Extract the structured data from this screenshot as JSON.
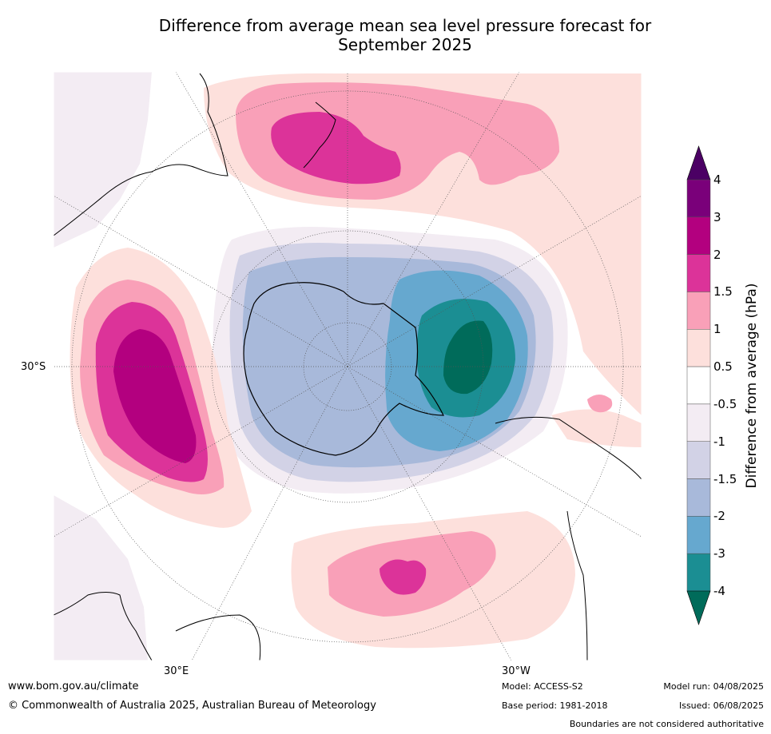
{
  "title_line1": "Difference from average mean sea level pressure forecast for",
  "title_line2": "September 2025",
  "axis_labels": {
    "lat": "30°S",
    "lon_east": "30°E",
    "lon_west": "30°W"
  },
  "colorbar": {
    "title": "Difference from average (hPa)",
    "tick_labels": [
      "4",
      "3",
      "2",
      "1.5",
      "1",
      "0.5",
      "-0.5",
      "-1",
      "-1.5",
      "-2",
      "-3",
      "-4"
    ],
    "colors": [
      "#4b0064",
      "#7a007a",
      "#b3007f",
      "#dc3399",
      "#f9a0b8",
      "#fde0dc",
      "#ffffff",
      "#f3ecf3",
      "#d2d2e6",
      "#a8b9da",
      "#66a8cf",
      "#1b8e93",
      "#006b5a"
    ]
  },
  "colors": {
    "land_outline": "#000000",
    "graticule": "#555555"
  },
  "footer": {
    "website": "www.bom.gov.au/climate",
    "copyright": "© Commonwealth of Australia 2025, Australian Bureau of Meteorology",
    "model": "Model: ACCESS-S2",
    "base_period": "Base period: 1981-2018",
    "model_run": "Model run: 04/08/2025",
    "issued": "Issued: 06/08/2025",
    "disclaimer": "Boundaries are not considered authoritative"
  }
}
